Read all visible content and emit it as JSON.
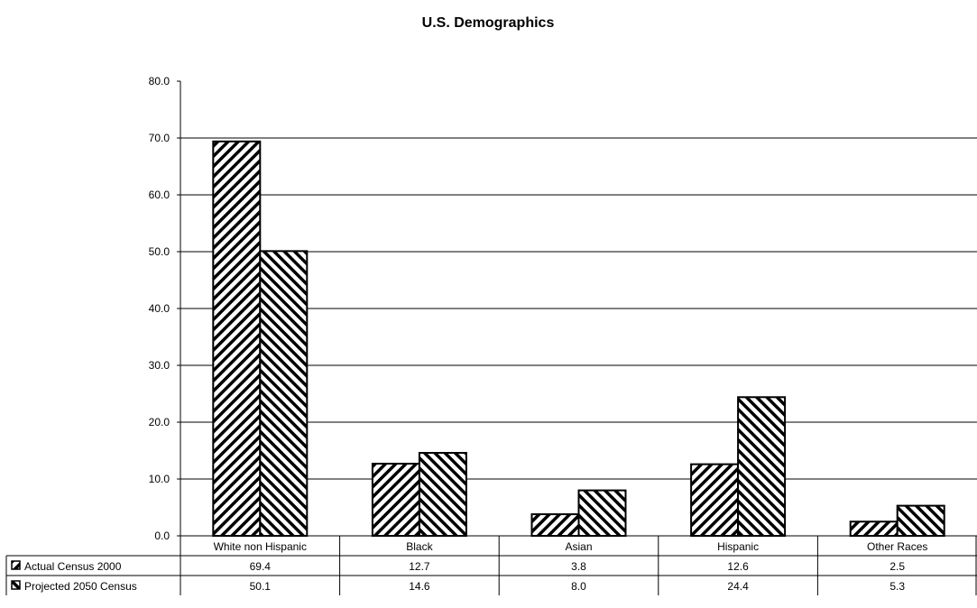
{
  "chart_data": {
    "type": "bar",
    "title": "U.S. Demographics",
    "categories": [
      "White non Hispanic",
      "Black",
      "Asian",
      "Hispanic",
      "Other Races"
    ],
    "series": [
      {
        "name": "Actual Census 2000",
        "values": [
          69.4,
          12.7,
          3.8,
          12.6,
          2.5
        ]
      },
      {
        "name": "Projected 2050 Census",
        "values": [
          50.1,
          14.6,
          8.0,
          24.4,
          5.3
        ]
      }
    ],
    "ylim": [
      0,
      80
    ],
    "yticks": [
      "0.0",
      "10.0",
      "20.0",
      "30.0",
      "40.0",
      "50.0",
      "60.0",
      "70.0",
      "80.0"
    ],
    "grid": true,
    "legend": "data table below chart",
    "table": {
      "rows": [
        [
          "69.4",
          "12.7",
          "3.8",
          "12.6",
          "2.5"
        ],
        [
          "50.1",
          "14.6",
          "8.0",
          "24.4",
          "5.3"
        ]
      ]
    },
    "colors": {
      "bar_fill": "#ffffff",
      "hatch": "#000000",
      "grid": "#000000"
    }
  }
}
